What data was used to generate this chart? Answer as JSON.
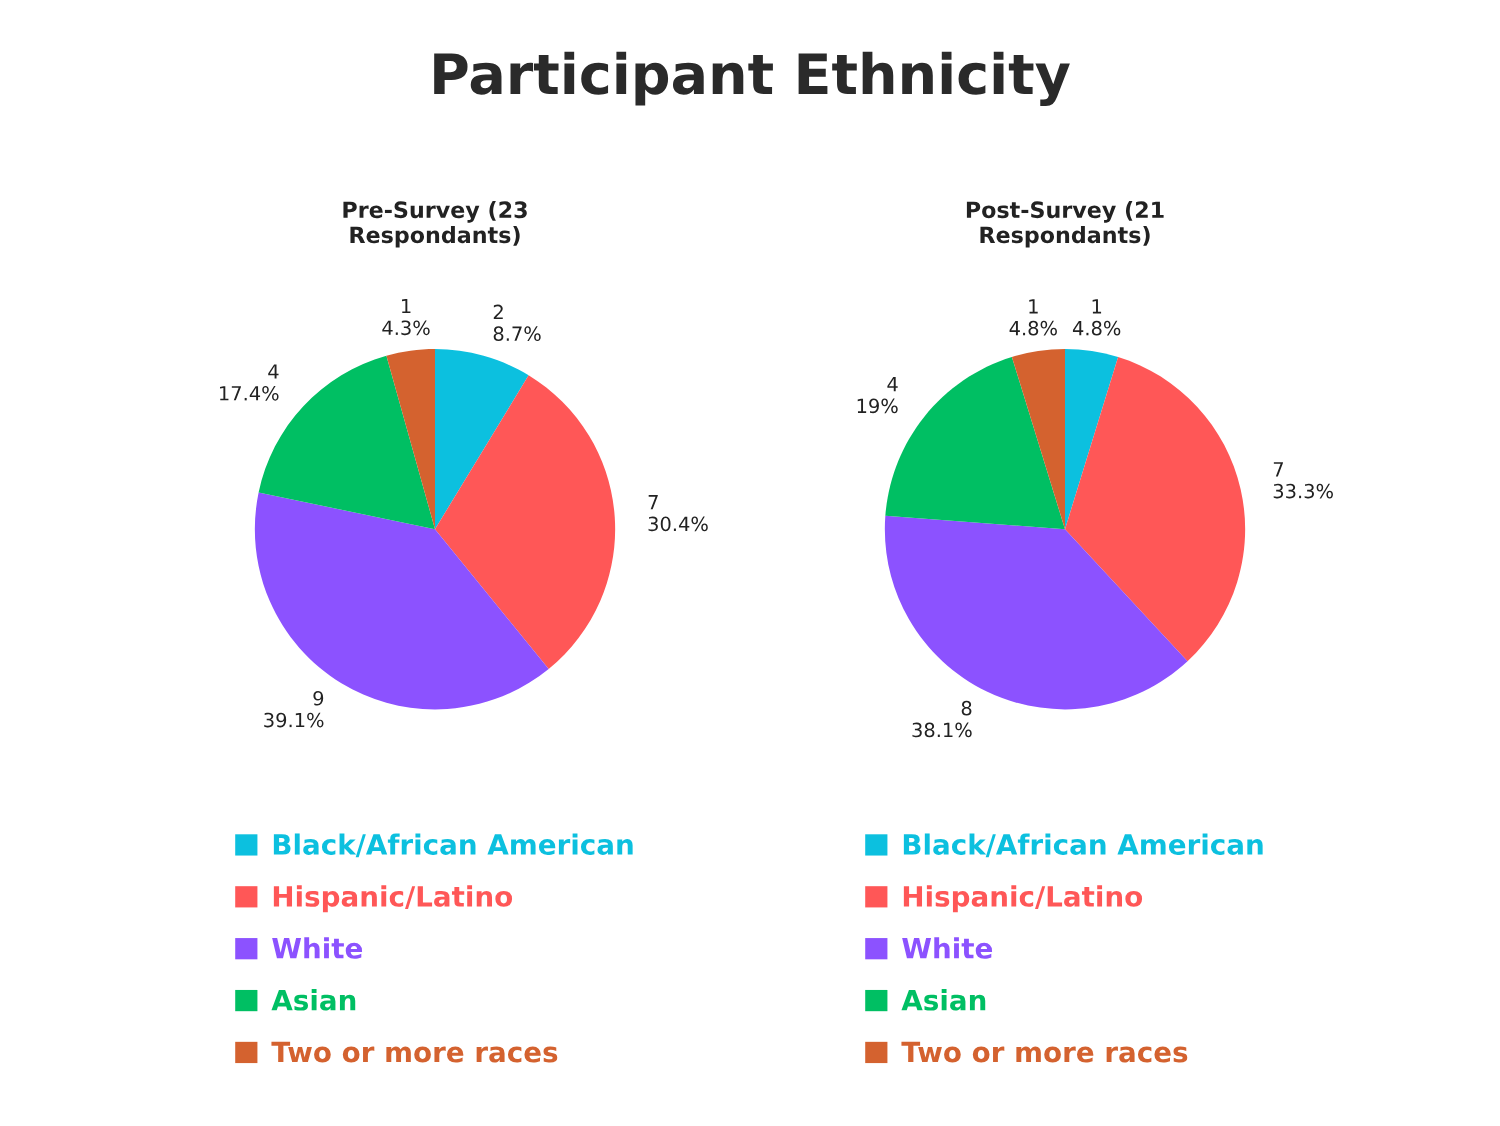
{
  "chart_data": [
    {
      "type": "pie",
      "title": "Pre-Survey (23\nRespondants)",
      "annotations": [
        "Participant Ethnicity"
      ],
      "categories": [
        "Black/African American",
        "Hispanic/Latino",
        "White",
        "Asian",
        "Two or more races"
      ],
      "values": [
        2,
        7,
        9,
        4,
        1
      ],
      "value_labels": [
        "2\n8.7%",
        "7\n30.4%",
        "9\n39.1%",
        "4\n17.4%",
        "1\n4.3%"
      ],
      "colors": [
        "#0cc0df",
        "#ff5757",
        "#8c52ff",
        "#00bf63",
        "#d4622f"
      ],
      "legend": "bottom"
    },
    {
      "type": "pie",
      "title": "Post-Survey (21\nRespondants)",
      "categories": [
        "Black/African American",
        "Hispanic/Latino",
        "White",
        "Asian",
        "Two or more races"
      ],
      "values": [
        1,
        7,
        8,
        4,
        1
      ],
      "value_labels": [
        "1\n4.8%",
        "7\n33.3%",
        "8\n38.1%",
        "4\n19%",
        "1\n4.8%"
      ],
      "colors": [
        "#0cc0df",
        "#ff5757",
        "#8c52ff",
        "#00bf63",
        "#d4622f"
      ],
      "legend": "bottom"
    }
  ]
}
